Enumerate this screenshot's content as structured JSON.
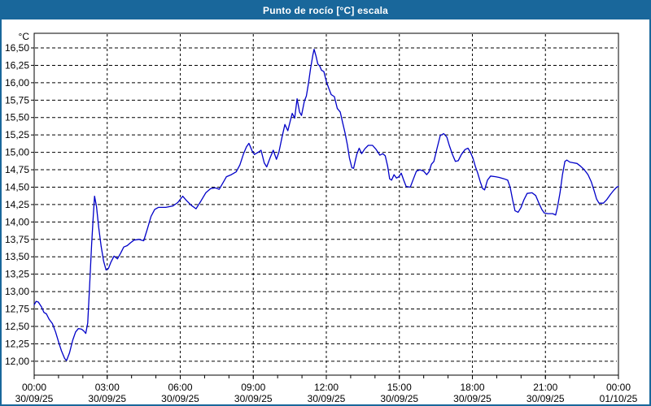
{
  "window": {
    "title": "Punto de rocío [°C] escala"
  },
  "colors": {
    "titlebar_bg": "#19679B",
    "window_border": "#19679B",
    "plot_bg": "#FFFFFF",
    "grid": "#000000",
    "axis": "#000000",
    "text": "#000000",
    "line": "#0000C8"
  },
  "chart_data": {
    "type": "line",
    "title": "Punto de rocío [°C] escala",
    "y_unit": "°C",
    "ylabel": "",
    "xlabel": "",
    "grid": "dashed",
    "legend_position": "none",
    "ylim": [
      11.8,
      16.71
    ],
    "xlim_hours": [
      0,
      24
    ],
    "y_ticks": [
      {
        "value": 16.5,
        "label": "16,50"
      },
      {
        "value": 16.25,
        "label": "16,25"
      },
      {
        "value": 16.0,
        "label": "16,00"
      },
      {
        "value": 15.75,
        "label": "15,75"
      },
      {
        "value": 15.5,
        "label": "15,50"
      },
      {
        "value": 15.25,
        "label": "15,25"
      },
      {
        "value": 15.0,
        "label": "15,00"
      },
      {
        "value": 14.75,
        "label": "14,75"
      },
      {
        "value": 14.5,
        "label": "14,50"
      },
      {
        "value": 14.25,
        "label": "14,25"
      },
      {
        "value": 14.0,
        "label": "14,00"
      },
      {
        "value": 13.75,
        "label": "13,75"
      },
      {
        "value": 13.5,
        "label": "13,50"
      },
      {
        "value": 13.25,
        "label": "13,25"
      },
      {
        "value": 13.0,
        "label": "13,00"
      },
      {
        "value": 12.75,
        "label": "12,75"
      },
      {
        "value": 12.5,
        "label": "12,50"
      },
      {
        "value": 12.25,
        "label": "12,25"
      },
      {
        "value": 12.0,
        "label": "12,00"
      }
    ],
    "x_ticks": [
      {
        "hour": 0,
        "time": "00:00",
        "date": "30/09/25"
      },
      {
        "hour": 3,
        "time": "03:00",
        "date": "30/09/25"
      },
      {
        "hour": 6,
        "time": "06:00",
        "date": "30/09/25"
      },
      {
        "hour": 9,
        "time": "09:00",
        "date": "30/09/25"
      },
      {
        "hour": 12,
        "time": "12:00",
        "date": "30/09/25"
      },
      {
        "hour": 15,
        "time": "15:00",
        "date": "30/09/25"
      },
      {
        "hour": 18,
        "time": "18:00",
        "date": "30/09/25"
      },
      {
        "hour": 21,
        "time": "21:00",
        "date": "30/09/25"
      },
      {
        "hour": 24,
        "time": "00:00",
        "date": "01/10/25"
      }
    ],
    "minor_x_tick_every_hours": 1,
    "series": [
      {
        "name": "Punto de rocío",
        "color": "#0000C8",
        "points": [
          [
            0.0,
            12.81
          ],
          [
            0.08,
            12.86
          ],
          [
            0.17,
            12.85
          ],
          [
            0.3,
            12.78
          ],
          [
            0.4,
            12.7
          ],
          [
            0.5,
            12.68
          ],
          [
            0.62,
            12.6
          ],
          [
            0.75,
            12.54
          ],
          [
            0.88,
            12.42
          ],
          [
            1.0,
            12.28
          ],
          [
            1.12,
            12.15
          ],
          [
            1.25,
            12.04
          ],
          [
            1.33,
            12.01
          ],
          [
            1.45,
            12.12
          ],
          [
            1.58,
            12.3
          ],
          [
            1.7,
            12.42
          ],
          [
            1.82,
            12.47
          ],
          [
            1.95,
            12.46
          ],
          [
            2.05,
            12.43
          ],
          [
            2.12,
            12.4
          ],
          [
            2.2,
            12.55
          ],
          [
            2.28,
            13.1
          ],
          [
            2.36,
            13.68
          ],
          [
            2.43,
            14.1
          ],
          [
            2.48,
            14.37
          ],
          [
            2.56,
            14.22
          ],
          [
            2.65,
            13.92
          ],
          [
            2.75,
            13.65
          ],
          [
            2.85,
            13.44
          ],
          [
            2.95,
            13.31
          ],
          [
            3.05,
            13.33
          ],
          [
            3.15,
            13.42
          ],
          [
            3.28,
            13.51
          ],
          [
            3.42,
            13.47
          ],
          [
            3.55,
            13.55
          ],
          [
            3.68,
            13.64
          ],
          [
            3.82,
            13.66
          ],
          [
            3.95,
            13.7
          ],
          [
            4.1,
            13.74
          ],
          [
            4.3,
            13.75
          ],
          [
            4.5,
            13.73
          ],
          [
            4.65,
            13.9
          ],
          [
            4.8,
            14.08
          ],
          [
            4.95,
            14.18
          ],
          [
            5.1,
            14.21
          ],
          [
            5.4,
            14.21
          ],
          [
            5.7,
            14.23
          ],
          [
            5.9,
            14.28
          ],
          [
            6.1,
            14.37
          ],
          [
            6.25,
            14.31
          ],
          [
            6.45,
            14.24
          ],
          [
            6.65,
            14.19
          ],
          [
            6.85,
            14.3
          ],
          [
            7.05,
            14.42
          ],
          [
            7.25,
            14.48
          ],
          [
            7.45,
            14.49
          ],
          [
            7.6,
            14.47
          ],
          [
            7.75,
            14.56
          ],
          [
            7.9,
            14.65
          ],
          [
            8.1,
            14.68
          ],
          [
            8.3,
            14.72
          ],
          [
            8.45,
            14.82
          ],
          [
            8.6,
            14.98
          ],
          [
            8.72,
            15.08
          ],
          [
            8.82,
            15.13
          ],
          [
            8.95,
            15.02
          ],
          [
            9.05,
            14.97
          ],
          [
            9.2,
            15.0
          ],
          [
            9.32,
            15.03
          ],
          [
            9.45,
            14.85
          ],
          [
            9.55,
            14.79
          ],
          [
            9.7,
            14.93
          ],
          [
            9.82,
            15.03
          ],
          [
            9.95,
            14.9
          ],
          [
            10.05,
            15.0
          ],
          [
            10.18,
            15.22
          ],
          [
            10.3,
            15.4
          ],
          [
            10.42,
            15.31
          ],
          [
            10.52,
            15.45
          ],
          [
            10.6,
            15.56
          ],
          [
            10.7,
            15.49
          ],
          [
            10.8,
            15.77
          ],
          [
            10.9,
            15.58
          ],
          [
            10.98,
            15.53
          ],
          [
            11.1,
            15.74
          ],
          [
            11.18,
            15.81
          ],
          [
            11.27,
            16.0
          ],
          [
            11.35,
            16.2
          ],
          [
            11.45,
            16.4
          ],
          [
            11.5,
            16.48
          ],
          [
            11.58,
            16.38
          ],
          [
            11.65,
            16.27
          ],
          [
            11.73,
            16.24
          ],
          [
            11.8,
            16.18
          ],
          [
            11.9,
            16.16
          ],
          [
            12.0,
            16.02
          ],
          [
            12.1,
            15.92
          ],
          [
            12.2,
            15.83
          ],
          [
            12.33,
            15.8
          ],
          [
            12.45,
            15.63
          ],
          [
            12.57,
            15.58
          ],
          [
            12.67,
            15.43
          ],
          [
            12.77,
            15.28
          ],
          [
            12.87,
            15.1
          ],
          [
            12.95,
            14.92
          ],
          [
            13.05,
            14.78
          ],
          [
            13.12,
            14.77
          ],
          [
            13.25,
            14.97
          ],
          [
            13.35,
            15.06
          ],
          [
            13.45,
            14.98
          ],
          [
            13.58,
            15.05
          ],
          [
            13.72,
            15.1
          ],
          [
            13.9,
            15.1
          ],
          [
            14.05,
            15.04
          ],
          [
            14.2,
            14.96
          ],
          [
            14.32,
            14.98
          ],
          [
            14.42,
            14.95
          ],
          [
            14.52,
            14.8
          ],
          [
            14.6,
            14.62
          ],
          [
            14.68,
            14.6
          ],
          [
            14.78,
            14.68
          ],
          [
            14.88,
            14.63
          ],
          [
            14.98,
            14.65
          ],
          [
            15.08,
            14.7
          ],
          [
            15.18,
            14.6
          ],
          [
            15.28,
            14.51
          ],
          [
            15.45,
            14.5
          ],
          [
            15.58,
            14.62
          ],
          [
            15.7,
            14.73
          ],
          [
            15.85,
            14.75
          ],
          [
            16.0,
            14.73
          ],
          [
            16.12,
            14.68
          ],
          [
            16.22,
            14.72
          ],
          [
            16.32,
            14.83
          ],
          [
            16.42,
            14.87
          ],
          [
            16.55,
            15.06
          ],
          [
            16.68,
            15.24
          ],
          [
            16.82,
            15.27
          ],
          [
            16.95,
            15.22
          ],
          [
            17.05,
            15.1
          ],
          [
            17.18,
            14.97
          ],
          [
            17.3,
            14.87
          ],
          [
            17.42,
            14.88
          ],
          [
            17.55,
            14.97
          ],
          [
            17.7,
            15.04
          ],
          [
            17.82,
            15.06
          ],
          [
            17.92,
            15.0
          ],
          [
            18.02,
            14.92
          ],
          [
            18.12,
            14.8
          ],
          [
            18.22,
            14.7
          ],
          [
            18.32,
            14.58
          ],
          [
            18.42,
            14.48
          ],
          [
            18.5,
            14.46
          ],
          [
            18.62,
            14.6
          ],
          [
            18.75,
            14.66
          ],
          [
            18.95,
            14.65
          ],
          [
            19.1,
            14.64
          ],
          [
            19.3,
            14.62
          ],
          [
            19.45,
            14.6
          ],
          [
            19.55,
            14.5
          ],
          [
            19.65,
            14.32
          ],
          [
            19.75,
            14.16
          ],
          [
            19.88,
            14.14
          ],
          [
            20.0,
            14.21
          ],
          [
            20.12,
            14.32
          ],
          [
            20.25,
            14.41
          ],
          [
            20.45,
            14.42
          ],
          [
            20.6,
            14.38
          ],
          [
            20.72,
            14.28
          ],
          [
            20.85,
            14.18
          ],
          [
            20.95,
            14.13
          ],
          [
            21.1,
            14.12
          ],
          [
            21.3,
            14.12
          ],
          [
            21.42,
            14.1
          ],
          [
            21.5,
            14.22
          ],
          [
            21.6,
            14.42
          ],
          [
            21.7,
            14.68
          ],
          [
            21.8,
            14.87
          ],
          [
            21.88,
            14.89
          ],
          [
            22.0,
            14.86
          ],
          [
            22.15,
            14.85
          ],
          [
            22.3,
            14.84
          ],
          [
            22.45,
            14.8
          ],
          [
            22.6,
            14.75
          ],
          [
            22.75,
            14.68
          ],
          [
            22.88,
            14.58
          ],
          [
            23.0,
            14.45
          ],
          [
            23.1,
            14.33
          ],
          [
            23.2,
            14.27
          ],
          [
            23.38,
            14.27
          ],
          [
            23.52,
            14.32
          ],
          [
            23.68,
            14.4
          ],
          [
            23.82,
            14.46
          ],
          [
            23.93,
            14.5
          ],
          [
            24.0,
            14.51
          ]
        ]
      }
    ]
  }
}
